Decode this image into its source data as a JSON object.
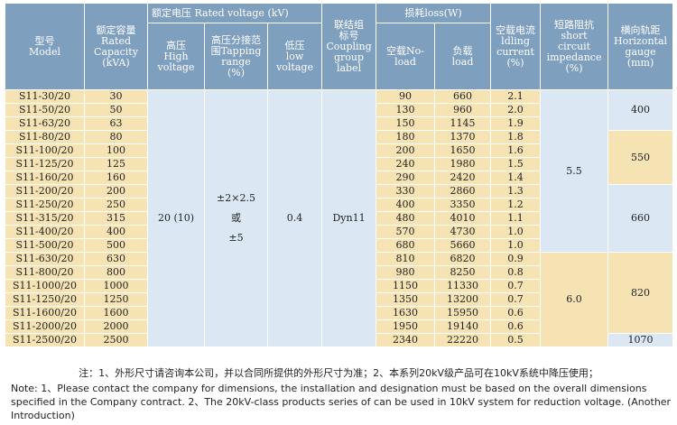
{
  "headers": {
    "model": "型号\nModel",
    "capacity": "额定容量\nRated\nCapacity\n(kVA)",
    "voltage_group": "额定电压 Rated voltage (kV)",
    "hv": "高压\nHigh\nvoltage",
    "tap": "高压分接范\n围Tapping\nrange\n(%)",
    "lv": "低压\nlow\nvoltage",
    "coupling": "联结组\n标号\nCoupling\ngroup\nlabel",
    "loss_group": "损耗loss(W)",
    "noload": "空载No-\nload",
    "load": "负载\nload",
    "idle": "空载电流\nldling\ncurrent\n(%)",
    "impedance": "短路阻抗\nshort\ncircuit\nimpedance\n(%)",
    "gauge": "横向轨距\nHorizontal\ngauge\n(mm)"
  },
  "shared": {
    "hv": "20 (10)",
    "tap": "±2×2.5\n或\n±5",
    "lv": "0.4",
    "coupling": "Dyn11",
    "impedance_a": "5.5",
    "impedance_b": "6.0",
    "gauge_a": "400",
    "gauge_b": "550",
    "gauge_c": "660",
    "gauge_d": "820",
    "gauge_e": "1070"
  },
  "rows": [
    {
      "model": "S11-30/20",
      "capacity": "30",
      "noload": "90",
      "load": "660",
      "idle": "2.1"
    },
    {
      "model": "S11-50/20",
      "capacity": "50",
      "noload": "130",
      "load": "960",
      "idle": "2.0"
    },
    {
      "model": "S11-63/20",
      "capacity": "63",
      "noload": "150",
      "load": "1145",
      "idle": "1.9"
    },
    {
      "model": "S11-80/20",
      "capacity": "80",
      "noload": "180",
      "load": "1370",
      "idle": "1.8"
    },
    {
      "model": "S11-100/20",
      "capacity": "100",
      "noload": "200",
      "load": "1650",
      "idle": "1.6"
    },
    {
      "model": "S11-125/20",
      "capacity": "125",
      "noload": "240",
      "load": "1980",
      "idle": "1.5"
    },
    {
      "model": "S11-160/20",
      "capacity": "160",
      "noload": "290",
      "load": "2420",
      "idle": "1.4"
    },
    {
      "model": "S11-200/20",
      "capacity": "200",
      "noload": "330",
      "load": "2860",
      "idle": "1.3"
    },
    {
      "model": "S11-250/20",
      "capacity": "250",
      "noload": "400",
      "load": "3350",
      "idle": "1.2"
    },
    {
      "model": "S11-315/20",
      "capacity": "315",
      "noload": "480",
      "load": "4010",
      "idle": "1.1"
    },
    {
      "model": "S11-400/20",
      "capacity": "400",
      "noload": "570",
      "load": "4730",
      "idle": "1.0"
    },
    {
      "model": "S11-500/20",
      "capacity": "500",
      "noload": "680",
      "load": "5660",
      "idle": "1.0"
    },
    {
      "model": "S11-630/20",
      "capacity": "630",
      "noload": "810",
      "load": "6820",
      "idle": "0.9"
    },
    {
      "model": "S11-800/20",
      "capacity": "800",
      "noload": "980",
      "load": "8250",
      "idle": "0.8"
    },
    {
      "model": "S11-1000/20",
      "capacity": "1000",
      "noload": "1150",
      "load": "11330",
      "idle": "0.7"
    },
    {
      "model": "S11-1250/20",
      "capacity": "1250",
      "noload": "1350",
      "load": "13200",
      "idle": "0.7"
    },
    {
      "model": "S11-1600/20",
      "capacity": "1600",
      "noload": "1630",
      "load": "15950",
      "idle": "0.6"
    },
    {
      "model": "S11-2000/20",
      "capacity": "2000",
      "noload": "1950",
      "load": "19140",
      "idle": "0.6"
    },
    {
      "model": "S11-2500/20",
      "capacity": "2500",
      "noload": "2340",
      "load": "22220",
      "idle": "0.5"
    }
  ],
  "notes": {
    "cn": "注：1、外形尺寸请咨询本公司，并以合同所提供的外形尺寸为准；2、本系列20kV级产品可在10kV系统中降压使用；",
    "en": "Note: 1、Please contact the company for dimensions, the installation and designation must be based on the overall dimensions specified in the Company contract. 2、The 20kV-class products series of can be used in 10kV system for reduction voltage. (Another Introduction)"
  }
}
